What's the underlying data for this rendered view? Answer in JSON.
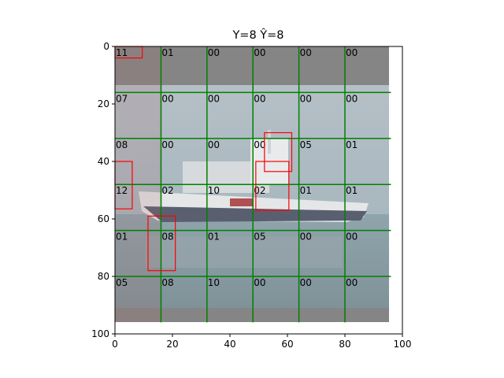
{
  "chart_data": {
    "type": "heatmap",
    "title": "Y=8 Ŷ=8",
    "xlabel": "",
    "ylabel": "",
    "xlim": [
      0,
      100
    ],
    "ylim": [
      100,
      0
    ],
    "x_ticks": [
      "0",
      "20",
      "40",
      "60",
      "80",
      "100"
    ],
    "y_ticks": [
      "0",
      "20",
      "40",
      "60",
      "80",
      "100"
    ],
    "image_extent": [
      0,
      96,
      0,
      96
    ],
    "grid_lines": [
      16,
      32,
      48,
      64,
      80
    ],
    "grid_color": "#008000",
    "box_color": "#ff0000",
    "cells": [
      [
        "11",
        "01",
        "00",
        "00",
        "00",
        "00"
      ],
      [
        "07",
        "00",
        "00",
        "00",
        "00",
        "00"
      ],
      [
        "08",
        "00",
        "00",
        "00",
        "05",
        "01"
      ],
      [
        "12",
        "02",
        "10",
        "02",
        "01",
        "01"
      ],
      [
        "01",
        "08",
        "01",
        "05",
        "00",
        "00"
      ],
      [
        "05",
        "08",
        "10",
        "00",
        "00",
        "00"
      ]
    ],
    "boxes": [
      {
        "x0": 0,
        "y0": 0,
        "x1": 9.5,
        "y1": 4
      },
      {
        "x0": 0,
        "y0": 40,
        "x1": 6,
        "y1": 56.5
      },
      {
        "x0": 11.5,
        "y0": 59,
        "x1": 21,
        "y1": 78
      },
      {
        "x0": 52,
        "y0": 30,
        "x1": 61.5,
        "y1": 43.5
      },
      {
        "x0": 49,
        "y0": 40,
        "x1": 60.5,
        "y1": 57
      }
    ]
  }
}
